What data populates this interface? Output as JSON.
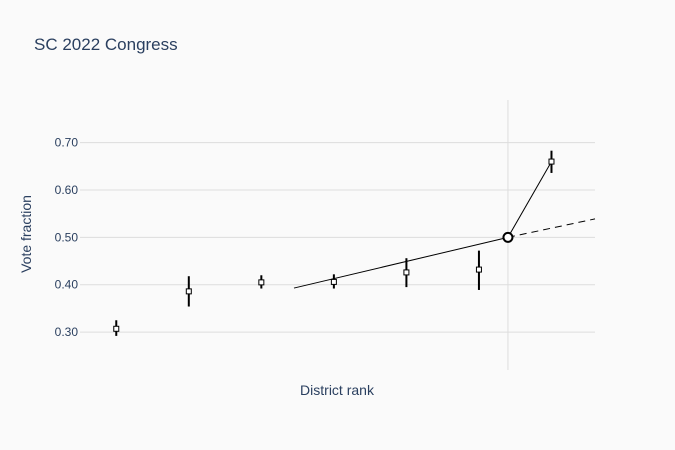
{
  "chart_data": {
    "type": "scatter",
    "title": "SC 2022 Congress",
    "xlabel": "District rank",
    "ylabel": "Vote fraction",
    "ylim": [
      0.22,
      0.79
    ],
    "xlim": [
      0.5,
      7.6
    ],
    "yticks": [
      0.3,
      0.4,
      0.5,
      0.6,
      0.7
    ],
    "ytick_labels": [
      "0.30",
      "0.40",
      "0.50",
      "0.60",
      "0.70"
    ],
    "grid": true,
    "legend": "none",
    "colors": {
      "background": "#fafafa",
      "grid": "#dddddd",
      "marker_edge": "#000000",
      "marker_fill": "#ffffff",
      "text": "#2a3f5f"
    },
    "points": [
      {
        "x": 1,
        "y": 0.307,
        "low": 0.292,
        "high": 0.325
      },
      {
        "x": 2,
        "y": 0.386,
        "low": 0.354,
        "high": 0.418
      },
      {
        "x": 3,
        "y": 0.405,
        "low": 0.392,
        "high": 0.42
      },
      {
        "x": 4,
        "y": 0.406,
        "low": 0.392,
        "high": 0.422
      },
      {
        "x": 5,
        "y": 0.426,
        "low": 0.395,
        "high": 0.456
      },
      {
        "x": 6,
        "y": 0.432,
        "low": 0.389,
        "high": 0.472
      },
      {
        "x": 7,
        "y": 0.66,
        "low": 0.636,
        "high": 0.683
      }
    ],
    "breakpoint": {
      "x": 6.4,
      "y": 0.5
    },
    "seat_line": [
      {
        "x": 3.45,
        "y": 0.393
      },
      {
        "x": 6.4,
        "y": 0.5
      }
    ],
    "seat_line_upper": [
      {
        "x": 6.4,
        "y": 0.5
      },
      {
        "x": 7,
        "y": 0.66
      }
    ],
    "dashed_line": [
      {
        "x": 6.4,
        "y": 0.5
      },
      {
        "x": 7.6,
        "y": 0.539
      }
    ]
  }
}
